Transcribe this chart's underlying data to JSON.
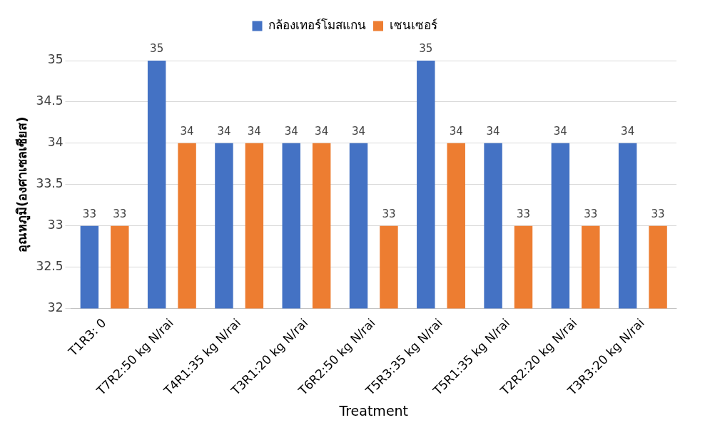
{
  "chart_data": {
    "type": "bar",
    "xlabel": "Treatment",
    "ylabel": "อุณหภูมิ(องศาเซลเซียส)",
    "categories": [
      "T1R3: 0",
      "T7R2:50 kg N/rai",
      "T4R1:35 kg N/rai",
      "T3R1:20 kg N/rai",
      "T6R2:50 kg N/rai",
      "T5R3:35 kg N/rai",
      "T5R1:35 kg N/rai",
      "T2R2:20 kg N/rai",
      "T3R3:20 kg N/rai"
    ],
    "series": [
      {
        "name": "กล้องเทอร์โมสแกน",
        "color": "#4472c4",
        "values": [
          33,
          35,
          34,
          34,
          34,
          35,
          34,
          34,
          34
        ]
      },
      {
        "name": "เซนเซอร์",
        "color": "#ed7d31",
        "values": [
          33,
          34,
          34,
          34,
          33,
          34,
          33,
          33,
          33
        ]
      }
    ],
    "ylim": [
      32,
      35
    ],
    "yticks": [
      32,
      32.5,
      33,
      33.5,
      34,
      34.5,
      35
    ],
    "grid": "y",
    "legend": "top",
    "data_labels": true
  }
}
